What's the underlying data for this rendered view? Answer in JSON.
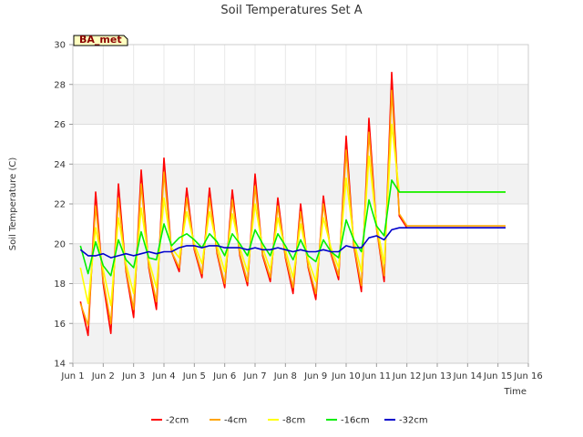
{
  "chart_data": {
    "type": "line",
    "title": "Soil Temperatures Set A",
    "xlabel": "Time",
    "ylabel": "Soil Temperature (C)",
    "ylim": [
      14,
      30
    ],
    "xlim": [
      "2024-06-01",
      "2024-06-16"
    ],
    "y_ticks": [
      "14",
      "16",
      "18",
      "20",
      "22",
      "24",
      "26",
      "28",
      "30"
    ],
    "x_ticks": [
      "Jun 1",
      "Jun 2",
      "Jun 3",
      "Jun 4",
      "Jun 5",
      "Jun 6",
      "Jun 7",
      "Jun 8",
      "Jun 9",
      "Jun 10",
      "Jun 11",
      "Jun 12",
      "Jun 13",
      "Jun 14",
      "Jun 15",
      "Jun 16"
    ],
    "grid": true,
    "legend_position": "bottom",
    "badge": "BA_met",
    "x": [
      "Jun 1 06:00",
      "Jun 1 12:00",
      "Jun 1 18:00",
      "Jun 2 00:00",
      "Jun 2 06:00",
      "Jun 2 12:00",
      "Jun 2 18:00",
      "Jun 3 00:00",
      "Jun 3 06:00",
      "Jun 3 12:00",
      "Jun 3 18:00",
      "Jun 4 00:00",
      "Jun 4 06:00",
      "Jun 4 12:00",
      "Jun 4 18:00",
      "Jun 5 00:00",
      "Jun 5 06:00",
      "Jun 5 12:00",
      "Jun 5 18:00",
      "Jun 6 00:00",
      "Jun 6 06:00",
      "Jun 6 12:00",
      "Jun 6 18:00",
      "Jun 7 00:00",
      "Jun 7 06:00",
      "Jun 7 12:00",
      "Jun 7 18:00",
      "Jun 8 00:00",
      "Jun 8 06:00",
      "Jun 8 12:00",
      "Jun 8 18:00",
      "Jun 9 00:00",
      "Jun 9 06:00",
      "Jun 9 12:00",
      "Jun 9 18:00",
      "Jun 10 00:00",
      "Jun 10 06:00",
      "Jun 10 12:00",
      "Jun 10 18:00",
      "Jun 11 00:00",
      "Jun 11 06:00",
      "Jun 11 12:00",
      "Jun 11 18:00",
      "Jun 12 00:00",
      "Jun 12 06:00",
      "Jun 12 12:00",
      "Jun 12 18:00",
      "Jun 13 00:00",
      "Jun 13 06:00",
      "Jun 13 12:00",
      "Jun 13 18:00",
      "Jun 14 00:00",
      "Jun 14 06:00",
      "Jun 14 12:00",
      "Jun 14 18:00",
      "Jun 15 00:00",
      "Jun 15 06:00"
    ],
    "series": [
      {
        "name": "-2cm",
        "color": "#ff0000",
        "values": [
          17.1,
          15.4,
          22.6,
          18.0,
          15.5,
          23.0,
          18.6,
          16.3,
          23.7,
          18.8,
          16.7,
          24.3,
          19.6,
          18.6,
          22.8,
          19.7,
          18.3,
          22.8,
          19.5,
          17.8,
          22.7,
          19.4,
          17.9,
          23.5,
          19.4,
          18.1,
          22.3,
          19.3,
          17.5,
          22.0,
          18.8,
          17.2,
          22.4,
          19.5,
          18.2,
          25.4,
          19.9,
          17.6,
          26.3,
          20.8,
          18.1,
          28.6,
          21.4,
          20.8,
          20.8,
          20.8,
          20.8,
          20.8,
          20.8,
          20.8,
          20.8,
          20.8,
          20.8,
          20.8,
          20.8,
          20.8,
          20.8
        ]
      },
      {
        "name": "-4cm",
        "color": "#ffa500",
        "values": [
          17.0,
          15.9,
          21.9,
          18.2,
          16.0,
          22.3,
          18.7,
          16.7,
          23.0,
          18.9,
          17.1,
          23.6,
          19.6,
          18.8,
          22.3,
          19.8,
          18.5,
          22.3,
          19.6,
          18.0,
          22.2,
          19.5,
          18.1,
          22.9,
          19.5,
          18.3,
          21.9,
          19.4,
          17.8,
          21.6,
          18.9,
          17.5,
          22.0,
          19.6,
          18.4,
          24.7,
          20.0,
          17.9,
          25.6,
          20.8,
          18.4,
          27.7,
          21.5,
          20.9,
          20.9,
          20.9,
          20.9,
          20.9,
          20.9,
          20.9,
          20.9,
          20.9,
          20.9,
          20.9,
          20.9,
          20.9,
          20.9
        ]
      },
      {
        "name": "-8cm",
        "color": "#ffff00",
        "values": [
          18.8,
          17.0,
          20.8,
          18.7,
          16.9,
          21.3,
          19.0,
          17.5,
          21.8,
          19.2,
          17.8,
          22.3,
          19.8,
          19.3,
          21.6,
          20.0,
          19.0,
          21.6,
          19.9,
          18.6,
          21.5,
          19.8,
          18.6,
          22.0,
          19.8,
          18.7,
          21.3,
          19.7,
          18.3,
          21.0,
          19.2,
          18.1,
          21.3,
          19.8,
          18.8,
          23.3,
          20.2,
          18.6,
          24.4,
          21.0,
          19.0,
          26.0,
          22.6,
          22.6,
          22.6,
          22.6,
          22.6,
          22.6,
          22.6,
          22.6,
          22.6,
          22.6,
          22.6,
          22.6,
          22.6,
          22.6,
          22.6
        ]
      },
      {
        "name": "-16cm",
        "color": "#00ee00",
        "values": [
          19.9,
          18.5,
          20.1,
          18.9,
          18.4,
          20.2,
          19.2,
          18.8,
          20.6,
          19.3,
          19.2,
          21.0,
          19.9,
          20.3,
          20.5,
          20.2,
          19.8,
          20.5,
          20.1,
          19.4,
          20.5,
          20.0,
          19.4,
          20.7,
          20.0,
          19.4,
          20.5,
          19.9,
          19.2,
          20.2,
          19.4,
          19.1,
          20.2,
          19.6,
          19.3,
          21.2,
          20.2,
          19.6,
          22.2,
          20.9,
          20.4,
          23.2,
          22.6,
          22.6,
          22.6,
          22.6,
          22.6,
          22.6,
          22.6,
          22.6,
          22.6,
          22.6,
          22.6,
          22.6,
          22.6,
          22.6,
          22.6
        ]
      },
      {
        "name": "-32cm",
        "color": "#0000cc",
        "values": [
          19.7,
          19.4,
          19.4,
          19.5,
          19.3,
          19.4,
          19.5,
          19.4,
          19.5,
          19.6,
          19.5,
          19.6,
          19.6,
          19.8,
          19.9,
          19.9,
          19.8,
          19.9,
          19.9,
          19.8,
          19.8,
          19.8,
          19.7,
          19.8,
          19.7,
          19.7,
          19.8,
          19.7,
          19.6,
          19.7,
          19.6,
          19.6,
          19.7,
          19.6,
          19.6,
          19.9,
          19.8,
          19.8,
          20.3,
          20.4,
          20.2,
          20.7,
          20.8,
          20.8,
          20.8,
          20.8,
          20.8,
          20.8,
          20.8,
          20.8,
          20.8,
          20.8,
          20.8,
          20.8,
          20.8,
          20.8,
          20.8
        ]
      }
    ]
  }
}
